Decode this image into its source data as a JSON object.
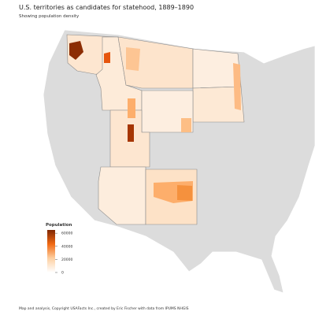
{
  "header": {
    "title": "U.S. territories as candidates for statehood, 1889–1890",
    "subtitle": "Showing population density"
  },
  "legend": {
    "title": "Population",
    "lim": [
      0,
      65000
    ],
    "ticks": [
      60000,
      40000,
      20000,
      0
    ],
    "colors": [
      "#ffffff",
      "#fdd0a2",
      "#f16913",
      "#7f2704"
    ]
  },
  "footer": {
    "text": "Map and analysis, Copyright USAFacts Inc., created by Eric Fischer with data from IPUMS NHGIS"
  }
}
